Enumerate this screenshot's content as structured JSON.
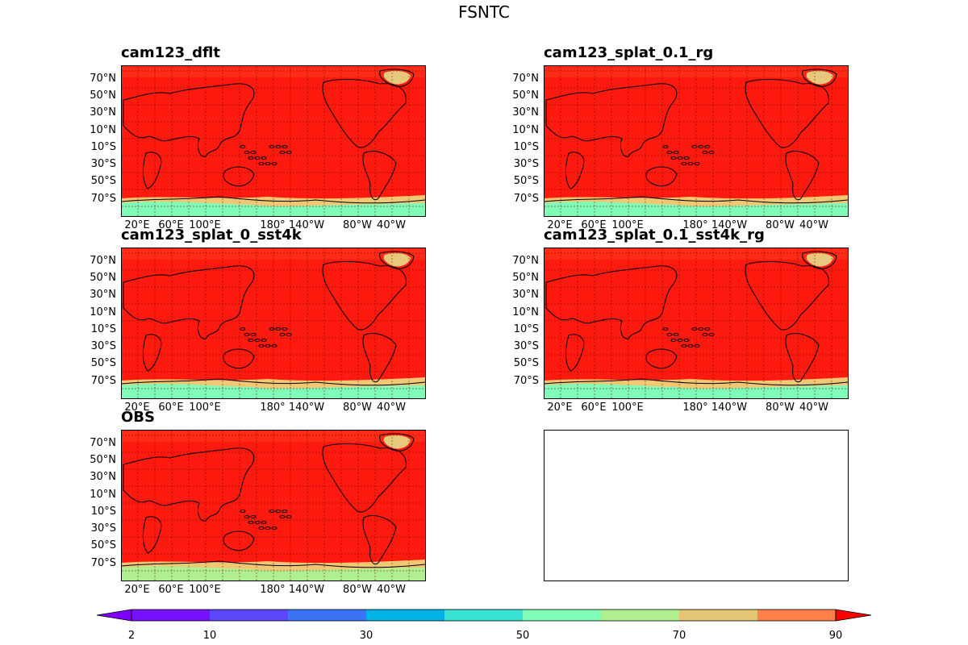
{
  "figure": {
    "title": "FSNTC"
  },
  "chart_data": {
    "type": "heatmap",
    "projection": "map",
    "panels": [
      {
        "title": "cam123_dflt",
        "has_data": true
      },
      {
        "title": "cam123_splat_0.1_rg",
        "has_data": true
      },
      {
        "title": "cam123_splat_0_sst4k",
        "has_data": true
      },
      {
        "title": "cam123_splat_0.1_sst4k_rg",
        "has_data": true
      },
      {
        "title": "OBS",
        "has_data": true
      },
      {
        "title": "",
        "has_data": false
      }
    ],
    "lat_ticks": [
      "70°N",
      "50°N",
      "30°N",
      "10°N",
      "10°S",
      "30°S",
      "50°S",
      "70°S"
    ],
    "lon_ticks": [
      "20°E",
      "60°E",
      "100°E",
      "180°",
      "140°W",
      "80°W",
      "40°W"
    ],
    "grid": true,
    "colorbar": {
      "orientation": "horizontal",
      "extend": "both",
      "levels": [
        2,
        10,
        20,
        30,
        40,
        50,
        60,
        70,
        80,
        90
      ],
      "tick_labels": [
        "2",
        "10",
        "30",
        "50",
        "70",
        "90"
      ],
      "colors": [
        "#7f00ff",
        "#7712ff",
        "#5c47fb",
        "#3a73f6",
        "#00b2e6",
        "#38e2d3",
        "#7ffcb8",
        "#b0ef8f",
        "#e4c575",
        "#ff7f4a",
        "#ff2b17",
        "#ff0000"
      ]
    },
    "field_colors": {
      "dominant": "#ff1a0f",
      "high_lat_north": "#ff2b17",
      "greenland": "#e8c97c",
      "antarctic_coast": "#f0c874",
      "antarctic_interior": "#7ffcb8",
      "obs_antarctic_interior": "#b0ef8f"
    }
  }
}
